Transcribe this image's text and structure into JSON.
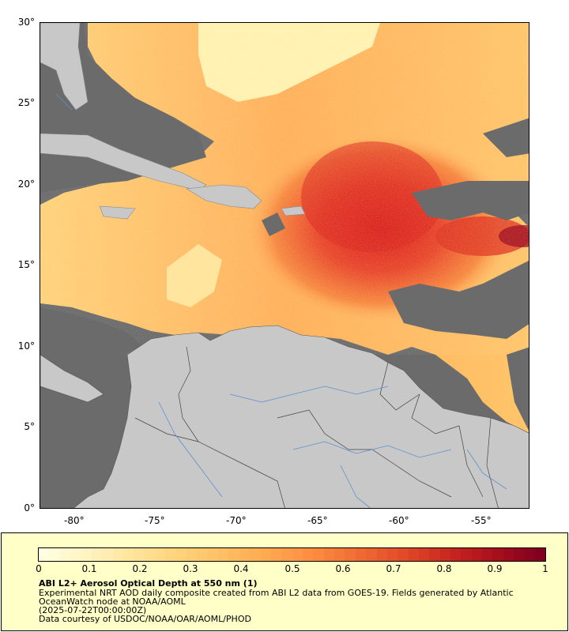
{
  "map": {
    "lat_labels": [
      "30°",
      "25°",
      "20°",
      "15°",
      "10°",
      "5°",
      "0°"
    ],
    "lon_labels": [
      "-80°",
      "-75°",
      "-70°",
      "-65°",
      "-60°",
      "-55°"
    ],
    "lat_range": [
      0,
      30
    ],
    "lon_range": [
      -82,
      -52
    ],
    "colors": {
      "ocean_no_data": "#6b6b6b",
      "land": "#c8c8c8",
      "rivers": "#5b8fd0",
      "borders": "#555555"
    }
  },
  "legend": {
    "ticks": [
      "0",
      "0.1",
      "0.2",
      "0.3",
      "0.4",
      "0.5",
      "0.6",
      "0.7",
      "0.8",
      "0.9",
      "1"
    ],
    "range": [
      0,
      1
    ],
    "colormap": [
      "#ffffe0",
      "#fff3c0",
      "#ffe49a",
      "#ffd27a",
      "#ffbf63",
      "#ffa74f",
      "#fb8b40",
      "#f06a33",
      "#e04a28",
      "#c82620",
      "#a8101c",
      "#800020"
    ],
    "title": "ABI L2+ Aerosol Optical Depth at 550 nm (1)",
    "description_line1": "Experimental NRT AOD daily composite created from ABI L2 data from GOES-19. Fields generated by Atlantic",
    "description_line2": "OceanWatch node at NOAA/AOML",
    "timestamp": "(2025-07-22T00:00:00Z)",
    "credit": "Data courtesy of USDOC/NOAA/OAR/AOML/PHOD"
  }
}
